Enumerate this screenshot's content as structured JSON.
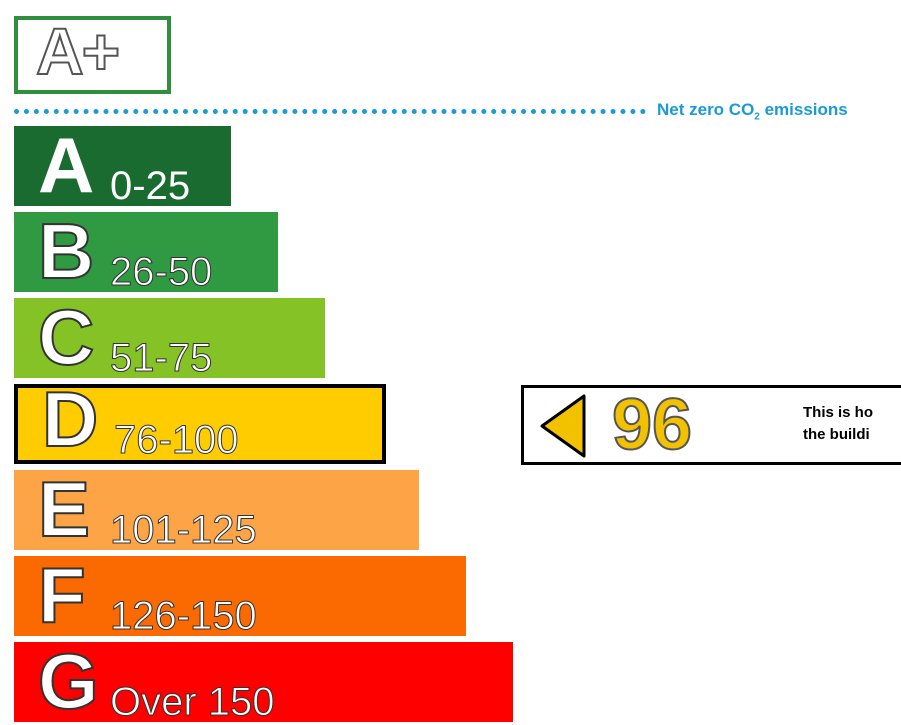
{
  "chart_data": {
    "type": "energy-rating",
    "top_band": {
      "label": "A+",
      "color": "#2f8f3e"
    },
    "net_zero": {
      "text": "Net zero CO",
      "subscript": "2",
      "suffix": " emissions",
      "color": "#1a9bd7"
    },
    "bands": [
      {
        "letter": "A",
        "range": "0-25",
        "min": 0,
        "max": 25,
        "color": "#1a6b30"
      },
      {
        "letter": "B",
        "range": "26-50",
        "min": 26,
        "max": 50,
        "color": "#2f9a41"
      },
      {
        "letter": "C",
        "range": "51-75",
        "min": 51,
        "max": 75,
        "color": "#84c226"
      },
      {
        "letter": "D",
        "range": "76-100",
        "min": 76,
        "max": 100,
        "color": "#ffcc00"
      },
      {
        "letter": "E",
        "range": "101-125",
        "min": 101,
        "max": 125,
        "color": "#fca446"
      },
      {
        "letter": "F",
        "range": "126-150",
        "min": 126,
        "max": 150,
        "color": "#fb6a00"
      },
      {
        "letter": "G",
        "range": "Over 150",
        "min": 151,
        "max": null,
        "color": "#fe0000"
      }
    ],
    "current_rating": {
      "value": 96,
      "band": "D",
      "color": "#f2c200",
      "note_lines": [
        "This is ho",
        "the buildi"
      ]
    }
  }
}
